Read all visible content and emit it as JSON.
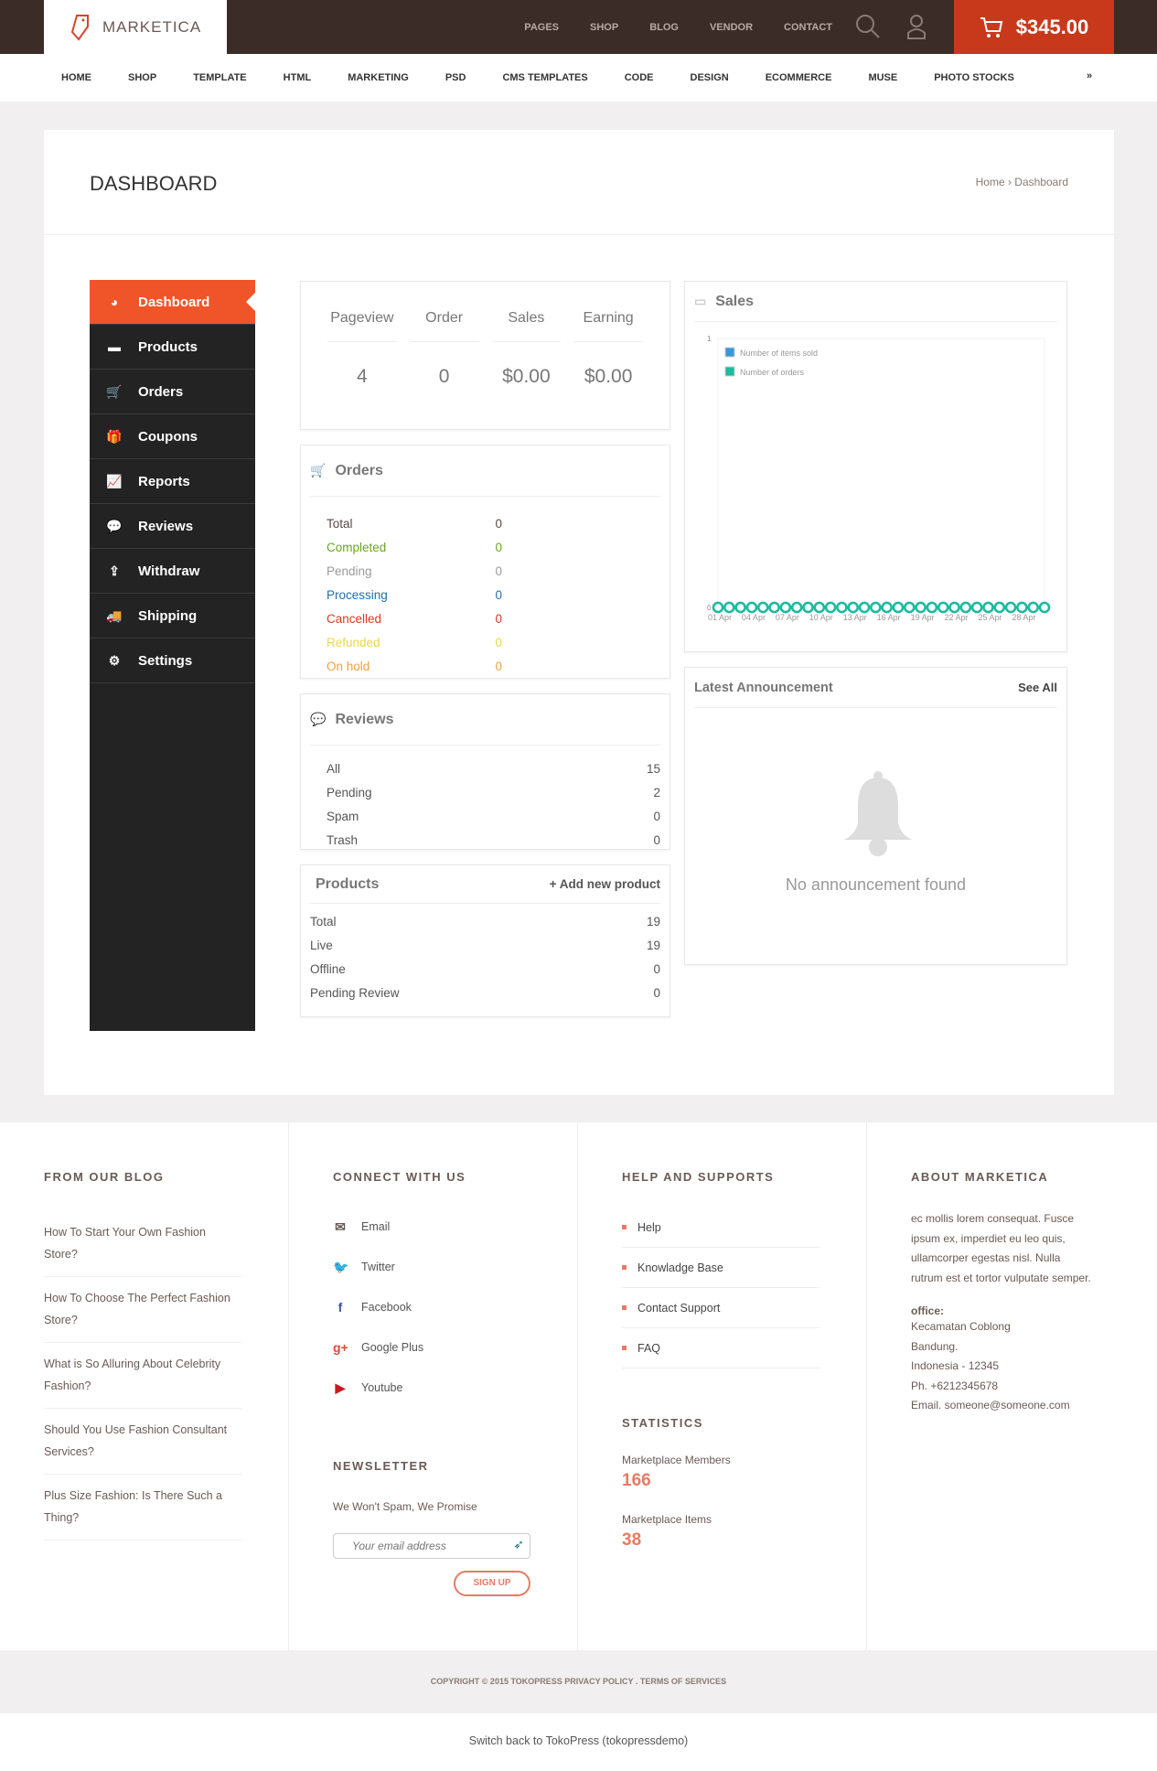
{
  "header": {
    "logo": "MARKETICA",
    "top_links": [
      "PAGES",
      "SHOP",
      "BLOG",
      "VENDOR",
      "CONTACT"
    ],
    "cart_total": "$345.00"
  },
  "main_nav": [
    "HOME",
    "SHOP",
    "TEMPLATE",
    "HTML",
    "MARKETING",
    "PSD",
    "CMS TEMPLATES",
    "CODE",
    "DESIGN",
    "ECOMMERCE",
    "MUSE",
    "PHOTO STOCKS"
  ],
  "page": {
    "title": "DASHBOARD",
    "breadcrumb": "Home › Dashboard"
  },
  "sidebar": {
    "items": [
      {
        "label": "Dashboard",
        "icon": "dashboard-icon",
        "glyph": "◕"
      },
      {
        "label": "Products",
        "icon": "briefcase-icon",
        "glyph": "▬"
      },
      {
        "label": "Orders",
        "icon": "cart-icon",
        "glyph": "🛒"
      },
      {
        "label": "Coupons",
        "icon": "gift-icon",
        "glyph": "🎁"
      },
      {
        "label": "Reports",
        "icon": "chart-line-icon",
        "glyph": "📈"
      },
      {
        "label": "Reviews",
        "icon": "comments-icon",
        "glyph": "💬"
      },
      {
        "label": "Withdraw",
        "icon": "upload-icon",
        "glyph": "⇪"
      },
      {
        "label": "Shipping",
        "icon": "truck-icon",
        "glyph": "🚚"
      },
      {
        "label": "Settings",
        "icon": "gear-icon",
        "glyph": "⚙"
      }
    ]
  },
  "stats": [
    {
      "label": "Pageview",
      "value": "4"
    },
    {
      "label": "Order",
      "value": "0"
    },
    {
      "label": "Sales",
      "value": "$0.00"
    },
    {
      "label": "Earning",
      "value": "$0.00"
    }
  ],
  "orders": {
    "title": "Orders",
    "rows": [
      {
        "label": "Total",
        "value": "0",
        "color": "#5a4a45"
      },
      {
        "label": "Completed",
        "value": "0",
        "color": "#6aa51e"
      },
      {
        "label": "Pending",
        "value": "0",
        "color": "#999999"
      },
      {
        "label": "Processing",
        "value": "0",
        "color": "#1e6fa5"
      },
      {
        "label": "Cancelled",
        "value": "0",
        "color": "#d93a1e"
      },
      {
        "label": "Refunded",
        "value": "0",
        "color": "#e8d84a"
      },
      {
        "label": "On hold",
        "value": "0",
        "color": "#f0a040"
      }
    ]
  },
  "reviews": {
    "title": "Reviews",
    "rows": [
      {
        "label": "All",
        "value": "15"
      },
      {
        "label": "Pending",
        "value": "2"
      },
      {
        "label": "Spam",
        "value": "0"
      },
      {
        "label": "Trash",
        "value": "0"
      }
    ]
  },
  "products": {
    "title": "Products",
    "add_label": "+ Add new product",
    "rows": [
      {
        "label": "Total",
        "value": "19"
      },
      {
        "label": "Live",
        "value": "19"
      },
      {
        "label": "Offline",
        "value": "0"
      },
      {
        "label": "Pending Review",
        "value": "0"
      }
    ]
  },
  "sales": {
    "title": "Sales"
  },
  "chart_data": {
    "type": "line",
    "x": [
      "01 Apr",
      "02 Apr",
      "03 Apr",
      "04 Apr",
      "05 Apr",
      "06 Apr",
      "07 Apr",
      "08 Apr",
      "09 Apr",
      "10 Apr",
      "11 Apr",
      "12 Apr",
      "13 Apr",
      "14 Apr",
      "15 Apr",
      "16 Apr",
      "17 Apr",
      "18 Apr",
      "19 Apr",
      "20 Apr",
      "21 Apr",
      "22 Apr",
      "23 Apr",
      "24 Apr",
      "25 Apr",
      "26 Apr",
      "27 Apr",
      "28 Apr",
      "29 Apr",
      "30 Apr"
    ],
    "x_tick_labels": [
      "01 Apr",
      "04 Apr",
      "07 Apr",
      "10 Apr",
      "13 Apr",
      "16 Apr",
      "19 Apr",
      "22 Apr",
      "25 Apr",
      "28 Apr"
    ],
    "y_tick_labels": [
      "0",
      "1"
    ],
    "ylim": [
      0,
      1
    ],
    "legend_position": "top-left",
    "series": [
      {
        "name": "Number of items sold",
        "color": "#3498db",
        "values": [
          0,
          0,
          0,
          0,
          0,
          0,
          0,
          0,
          0,
          0,
          0,
          0,
          0,
          0,
          0,
          0,
          0,
          0,
          0,
          0,
          0,
          0,
          0,
          0,
          0,
          0,
          0,
          0,
          0,
          0
        ]
      },
      {
        "name": "Number of orders",
        "color": "#1abc9c",
        "values": [
          0,
          0,
          0,
          0,
          0,
          0,
          0,
          0,
          0,
          0,
          0,
          0,
          0,
          0,
          0,
          0,
          0,
          0,
          0,
          0,
          0,
          0,
          0,
          0,
          0,
          0,
          0,
          0,
          0,
          0
        ]
      }
    ]
  },
  "announcement": {
    "title": "Latest Announcement",
    "see_all": "See All",
    "empty": "No announcement found"
  },
  "footer": {
    "blog": {
      "title": "FROM OUR BLOG",
      "posts": [
        "How To Start Your Own Fashion Store?",
        "How To Choose The Perfect Fashion Store?",
        "What is So Alluring About Celebrity Fashion?",
        "Should You Use Fashion Consultant Services?",
        "Plus Size Fashion: Is There Such a Thing?"
      ]
    },
    "connect": {
      "title": "CONNECT WITH US",
      "items": [
        {
          "label": "Email",
          "glyph": "✉",
          "color": "#6a5a55"
        },
        {
          "label": "Twitter",
          "glyph": "🐦",
          "color": "#2aa9e0"
        },
        {
          "label": "Facebook",
          "glyph": "f",
          "color": "#3b5998"
        },
        {
          "label": "Google Plus",
          "glyph": "g+",
          "color": "#dd4b39"
        },
        {
          "label": "Youtube",
          "glyph": "▶",
          "color": "#cc181e"
        }
      ]
    },
    "newsletter": {
      "title": "NEWSLETTER",
      "text": "We Won't Spam, We Promise",
      "placeholder": "Your email address",
      "button": "SIGN UP"
    },
    "help": {
      "title": "HELP AND SUPPORTS",
      "items": [
        "Help",
        "Knowladge Base",
        "Contact Support",
        "FAQ"
      ]
    },
    "statistics": {
      "title": "STATISTICS",
      "items": [
        {
          "label": "Marketplace Members",
          "value": "166"
        },
        {
          "label": "Marketplace Items",
          "value": "38"
        }
      ]
    },
    "about": {
      "title": "ABOUT MARKETICA",
      "text": "ec mollis lorem consequat. Fusce ipsum ex, imperdiet eu leo quis, ullamcorper egestas nisl. Nulla rutrum est et tortor vulputate semper.",
      "office_label": "office:",
      "lines": [
        "Kecamatan Coblong",
        "Bandung.",
        "Indonesia - 12345",
        "Ph. +6212345678",
        "Email. someone@someone.com"
      ]
    },
    "copyright": "COPYRIGHT © 2015 TOKOPRESS   PRIVACY POLICY . TERMS OF SERVICES",
    "switch_back": "Switch back to TokoPress (tokopressdemo)"
  },
  "colors": {
    "accent": "#f0552a",
    "cart": "#c8391c",
    "topbar": "#3b2c28",
    "sidebar": "#232323"
  }
}
